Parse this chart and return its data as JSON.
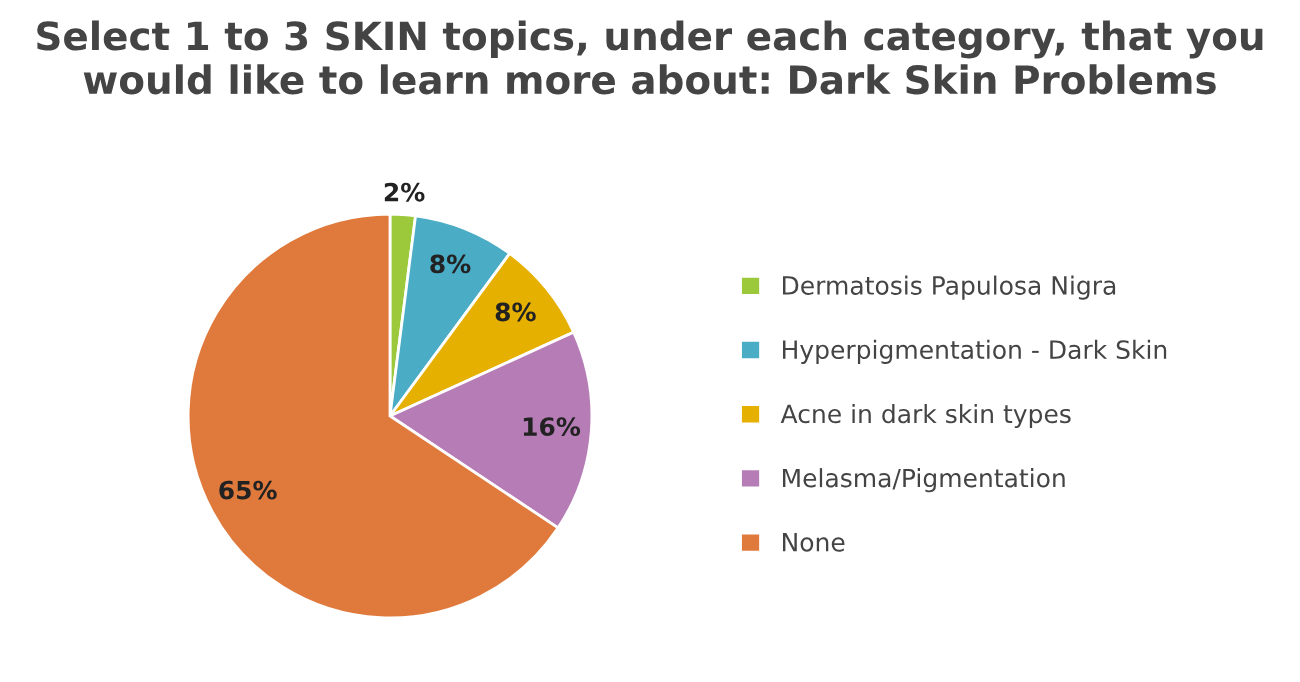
{
  "chart_data": {
    "type": "pie",
    "title": "Select 1 to 3 SKIN topics, under each category, that you would like to learn more about: Dark Skin Problems",
    "categories": [
      "Dermatosis Papulosa Nigra",
      "Hyperpigmentation - Dark Skin",
      "Acne in dark skin types",
      "Melasma/Pigmentation",
      "None"
    ],
    "values": [
      2,
      8,
      8,
      16,
      65
    ],
    "colors": [
      "#9bc93b",
      "#4bacc6",
      "#e6b000",
      "#b67cb6",
      "#e07a3c"
    ],
    "value_labels": [
      "2%",
      "8%",
      "8%",
      "16%",
      "65%"
    ],
    "legend": "right"
  }
}
